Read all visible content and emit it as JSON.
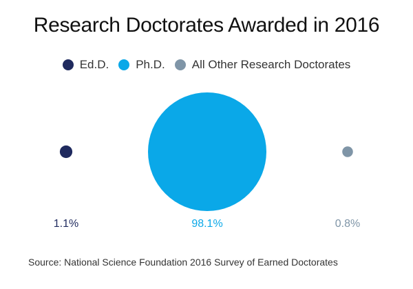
{
  "chart_data": {
    "type": "bubble",
    "title": "Research Doctorates Awarded in 2016",
    "legend_position": "top",
    "grid": false,
    "series": [
      {
        "name": "Ed.D.",
        "value": 1.1,
        "label": "1.1%",
        "color": "#1f2a5e"
      },
      {
        "name": "Ph.D.",
        "value": 98.1,
        "label": "98.1%",
        "color": "#0aa8e8"
      },
      {
        "name": "All Other Research Doctorates",
        "value": 0.8,
        "label": "0.8%",
        "color": "#7f95a7"
      }
    ]
  },
  "source": "Source: National Science Foundation 2016 Survey of Earned Doctorates"
}
